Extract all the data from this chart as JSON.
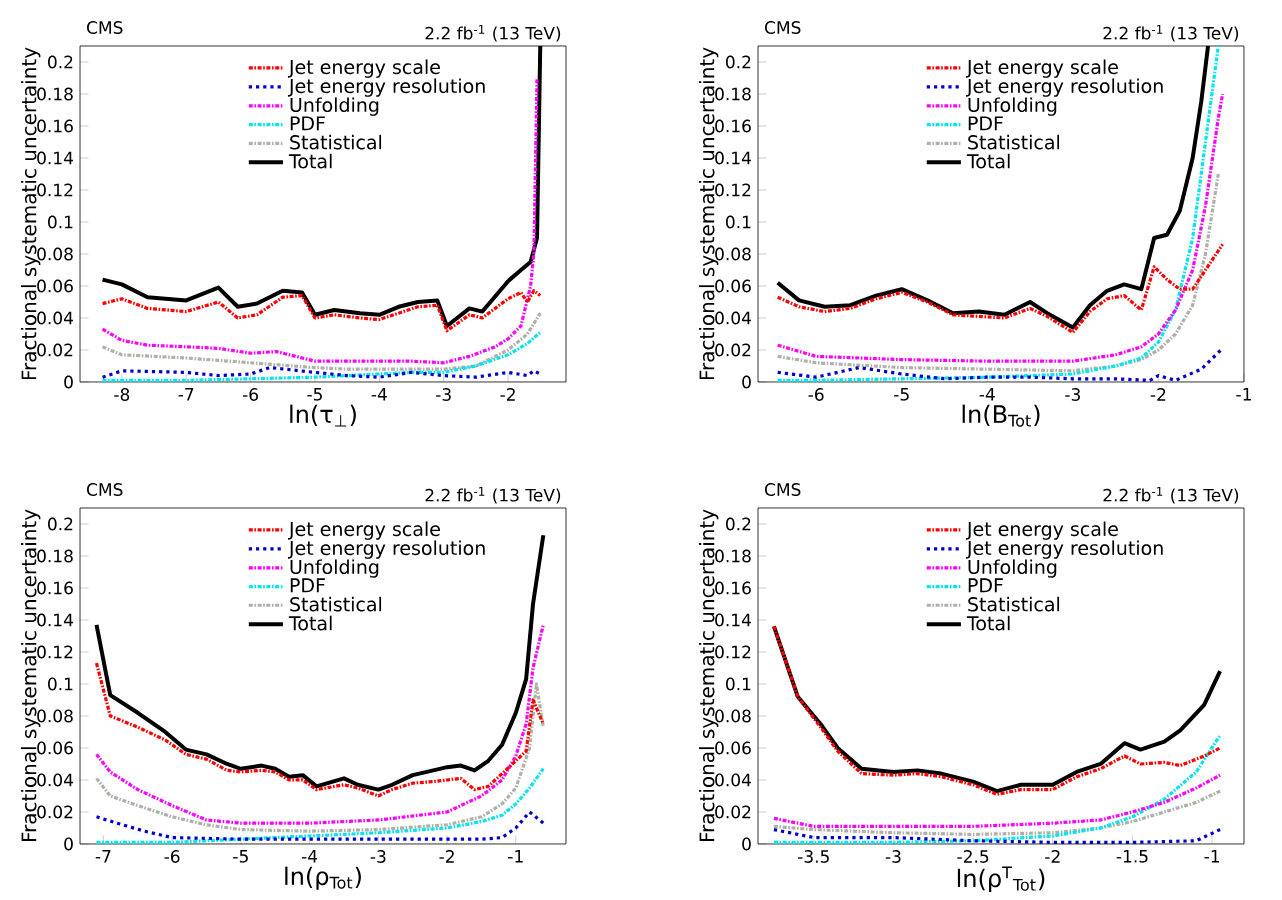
{
  "chart_data": [
    {
      "type": "line",
      "title": "CMS",
      "subtitle": "2.2 fb$^{-1}$ (13 TeV)",
      "xlabel": "ln(τ$_{⊥}$)",
      "ylabel": "Fractional systematic uncertainty",
      "xlim": [
        -8.65,
        -1.1
      ],
      "ylim": [
        0,
        0.21
      ],
      "xticks": [
        -8,
        -7,
        -6,
        -5,
        -4,
        -3,
        -2
      ],
      "yticks": [
        0,
        0.02,
        0.04,
        0.06,
        0.08,
        0.1,
        0.12,
        0.14,
        0.16,
        0.18,
        0.2
      ],
      "legend": "top",
      "series": [
        {
          "name": "Jet energy scale",
          "color": "#ff0000",
          "line_style": "dashed",
          "x": [
            -8.3,
            -8.0,
            -7.6,
            -7.0,
            -6.5,
            -6.2,
            -5.9,
            -5.5,
            -5.2,
            -5.0,
            -4.7,
            -4.3,
            -4.0,
            -3.7,
            -3.4,
            -3.1,
            -2.95,
            -2.6,
            -2.4,
            -2.0,
            -1.8,
            -1.7,
            -1.6,
            -1.5
          ],
          "values": [
            0.049,
            0.052,
            0.046,
            0.044,
            0.05,
            0.04,
            0.042,
            0.053,
            0.054,
            0.04,
            0.042,
            0.04,
            0.039,
            0.043,
            0.047,
            0.048,
            0.032,
            0.042,
            0.04,
            0.052,
            0.056,
            0.05,
            0.057,
            0.054
          ]
        },
        {
          "name": "Jet energy resolution",
          "color": "#0000cc",
          "line_style": "dotted",
          "x": [
            -8.3,
            -8.0,
            -7.0,
            -6.5,
            -6.0,
            -5.7,
            -5.0,
            -4.5,
            -4.0,
            -3.5,
            -3.0,
            -2.5,
            -2.0,
            -1.7,
            -1.6,
            -1.5
          ],
          "values": [
            0.003,
            0.007,
            0.006,
            0.004,
            0.005,
            0.009,
            0.006,
            0.004,
            0.003,
            0.006,
            0.004,
            0.003,
            0.006,
            0.004,
            0.007,
            0.005
          ]
        },
        {
          "name": "Unfolding",
          "color": "#ff00ff",
          "line_style": "dashed",
          "x": [
            -8.3,
            -8.0,
            -7.6,
            -7.0,
            -6.5,
            -6.0,
            -5.6,
            -5.0,
            -4.5,
            -4.0,
            -3.5,
            -3.0,
            -2.6,
            -2.2,
            -2.0,
            -1.8,
            -1.65,
            -1.6,
            -1.55
          ],
          "values": [
            0.033,
            0.026,
            0.023,
            0.022,
            0.021,
            0.018,
            0.019,
            0.013,
            0.013,
            0.013,
            0.013,
            0.012,
            0.016,
            0.022,
            0.027,
            0.035,
            0.06,
            0.08,
            0.19
          ]
        },
        {
          "name": "PDF",
          "color": "#00e5ee",
          "line_style": "dashed",
          "x": [
            -8.3,
            -7.0,
            -6.0,
            -5.0,
            -4.0,
            -3.5,
            -3.0,
            -2.5,
            -2.0,
            -1.7,
            -1.5
          ],
          "values": [
            0.001,
            0.001,
            0.002,
            0.003,
            0.005,
            0.006,
            0.006,
            0.01,
            0.017,
            0.024,
            0.031
          ]
        },
        {
          "name": "Statistical",
          "color": "#b0b0a8",
          "line_style": "dashed",
          "x": [
            -8.3,
            -8.0,
            -7.0,
            -6.0,
            -5.0,
            -4.5,
            -4.0,
            -3.5,
            -3.0,
            -2.5,
            -2.0,
            -1.7,
            -1.5
          ],
          "values": [
            0.022,
            0.017,
            0.015,
            0.012,
            0.009,
            0.008,
            0.008,
            0.008,
            0.008,
            0.01,
            0.02,
            0.03,
            0.043
          ]
        },
        {
          "name": "Total",
          "color": "#000000",
          "line_style": "solid",
          "x": [
            -8.3,
            -8.0,
            -7.6,
            -7.0,
            -6.5,
            -6.2,
            -5.9,
            -5.5,
            -5.2,
            -5.0,
            -4.7,
            -4.3,
            -4.0,
            -3.7,
            -3.4,
            -3.1,
            -2.95,
            -2.6,
            -2.4,
            -2.0,
            -1.8,
            -1.65,
            -1.55,
            -1.5
          ],
          "values": [
            0.064,
            0.061,
            0.053,
            0.051,
            0.059,
            0.047,
            0.049,
            0.057,
            0.056,
            0.042,
            0.045,
            0.043,
            0.042,
            0.047,
            0.05,
            0.051,
            0.035,
            0.046,
            0.044,
            0.063,
            0.07,
            0.075,
            0.09,
            0.21
          ]
        }
      ]
    },
    {
      "type": "line",
      "title": "CMS",
      "subtitle": "2.2 fb$^{-1}$ (13 TeV)",
      "xlabel": "ln(B$_{Tot}$)",
      "ylabel": "Fractional systematic uncertainty",
      "xlim": [
        -6.68,
        -1.0
      ],
      "ylim": [
        0,
        0.21
      ],
      "xticks": [
        -6,
        -5,
        -4,
        -3,
        -2,
        -1
      ],
      "yticks": [
        0,
        0.02,
        0.04,
        0.06,
        0.08,
        0.1,
        0.12,
        0.14,
        0.16,
        0.18,
        0.2
      ],
      "legend": "top",
      "series": [
        {
          "name": "Jet energy scale",
          "color": "#ff0000",
          "line_style": "dashed",
          "x": [
            -6.45,
            -6.2,
            -5.9,
            -5.6,
            -5.3,
            -5.0,
            -4.7,
            -4.4,
            -4.1,
            -3.8,
            -3.5,
            -3.3,
            -3.0,
            -2.8,
            -2.6,
            -2.4,
            -2.2,
            -2.05,
            -1.9,
            -1.75,
            -1.6,
            -1.45,
            -1.25
          ],
          "values": [
            0.053,
            0.047,
            0.044,
            0.046,
            0.052,
            0.056,
            0.05,
            0.042,
            0.041,
            0.04,
            0.046,
            0.041,
            0.031,
            0.044,
            0.052,
            0.054,
            0.045,
            0.072,
            0.064,
            0.058,
            0.058,
            0.07,
            0.086
          ]
        },
        {
          "name": "Jet energy resolution",
          "color": "#0000cc",
          "line_style": "dotted",
          "x": [
            -6.45,
            -6.0,
            -5.5,
            -5.0,
            -4.5,
            -4.0,
            -3.5,
            -3.0,
            -2.5,
            -2.1,
            -2.0,
            -1.8,
            -1.5,
            -1.25
          ],
          "values": [
            0.006,
            0.003,
            0.009,
            0.005,
            0.002,
            0.003,
            0.003,
            0.002,
            0.002,
            0.001,
            0.004,
            0.001,
            0.008,
            0.021
          ]
        },
        {
          "name": "Unfolding",
          "color": "#ff00ff",
          "line_style": "dashed",
          "x": [
            -6.45,
            -6.0,
            -5.0,
            -4.0,
            -3.0,
            -2.5,
            -2.2,
            -2.0,
            -1.8,
            -1.6,
            -1.45,
            -1.3,
            -1.25
          ],
          "values": [
            0.023,
            0.016,
            0.014,
            0.013,
            0.013,
            0.017,
            0.022,
            0.03,
            0.045,
            0.07,
            0.11,
            0.165,
            0.18
          ]
        },
        {
          "name": "PDF",
          "color": "#00e5ee",
          "line_style": "dashed",
          "x": [
            -6.45,
            -6.0,
            -5.0,
            -4.0,
            -3.0,
            -2.5,
            -2.2,
            -2.0,
            -1.8,
            -1.6,
            -1.45,
            -1.3
          ],
          "values": [
            0.001,
            0.001,
            0.002,
            0.003,
            0.005,
            0.01,
            0.015,
            0.025,
            0.045,
            0.09,
            0.15,
            0.21
          ]
        },
        {
          "name": "Statistical",
          "color": "#b0b0a8",
          "line_style": "dashed",
          "x": [
            -6.45,
            -6.0,
            -5.0,
            -4.0,
            -3.0,
            -2.5,
            -2.2,
            -2.0,
            -1.8,
            -1.6,
            -1.45,
            -1.3
          ],
          "values": [
            0.016,
            0.012,
            0.009,
            0.008,
            0.007,
            0.01,
            0.014,
            0.02,
            0.03,
            0.048,
            0.08,
            0.13
          ]
        },
        {
          "name": "Total",
          "color": "#000000",
          "line_style": "solid",
          "x": [
            -6.45,
            -6.2,
            -5.9,
            -5.6,
            -5.3,
            -5.0,
            -4.7,
            -4.4,
            -4.1,
            -3.8,
            -3.5,
            -3.3,
            -3.0,
            -2.8,
            -2.6,
            -2.4,
            -2.2,
            -2.05,
            -1.9,
            -1.75,
            -1.6,
            -1.5,
            -1.42
          ],
          "values": [
            0.062,
            0.051,
            0.047,
            0.048,
            0.054,
            0.058,
            0.051,
            0.043,
            0.044,
            0.042,
            0.05,
            0.043,
            0.034,
            0.048,
            0.057,
            0.061,
            0.058,
            0.09,
            0.092,
            0.107,
            0.14,
            0.175,
            0.21
          ]
        }
      ]
    },
    {
      "type": "line",
      "title": "CMS",
      "subtitle": "2.2 fb$^{-1}$ (13 TeV)",
      "xlabel": "ln(ρ$_{Tot}$)",
      "ylabel": "Fractional systematic uncertainty",
      "xlim": [
        -7.34,
        -0.27
      ],
      "ylim": [
        0,
        0.21
      ],
      "xticks": [
        -7,
        -6,
        -5,
        -4,
        -3,
        -2,
        -1
      ],
      "yticks": [
        0,
        0.02,
        0.04,
        0.06,
        0.08,
        0.1,
        0.12,
        0.14,
        0.16,
        0.18,
        0.2
      ],
      "legend": "top",
      "series": [
        {
          "name": "Jet energy scale",
          "color": "#ff0000",
          "line_style": "dashed",
          "x": [
            -7.1,
            -6.9,
            -6.5,
            -6.1,
            -5.8,
            -5.5,
            -5.2,
            -5.0,
            -4.7,
            -4.5,
            -4.3,
            -4.1,
            -3.9,
            -3.5,
            -3.3,
            -3.0,
            -2.8,
            -2.5,
            -2.2,
            -2.0,
            -1.8,
            -1.6,
            -1.4,
            -1.2,
            -1.0,
            -0.85,
            -0.75,
            -0.6
          ],
          "values": [
            0.113,
            0.08,
            0.073,
            0.065,
            0.056,
            0.053,
            0.046,
            0.045,
            0.046,
            0.045,
            0.04,
            0.04,
            0.034,
            0.037,
            0.035,
            0.03,
            0.034,
            0.038,
            0.039,
            0.04,
            0.041,
            0.034,
            0.036,
            0.044,
            0.052,
            0.058,
            0.09,
            0.075
          ]
        },
        {
          "name": "Jet energy resolution",
          "color": "#0000cc",
          "line_style": "dotted",
          "x": [
            -7.1,
            -6.8,
            -6.4,
            -6.0,
            -5.0,
            -4.0,
            -3.0,
            -2.0,
            -1.5,
            -1.2,
            -1.0,
            -0.8,
            -0.6
          ],
          "values": [
            0.017,
            0.013,
            0.008,
            0.004,
            0.003,
            0.003,
            0.003,
            0.003,
            0.003,
            0.004,
            0.01,
            0.02,
            0.013
          ]
        },
        {
          "name": "Unfolding",
          "color": "#ff00ff",
          "line_style": "dashed",
          "x": [
            -7.1,
            -6.9,
            -6.5,
            -6.0,
            -5.5,
            -5.0,
            -4.0,
            -3.0,
            -2.0,
            -1.5,
            -1.2,
            -1.0,
            -0.85,
            -0.75,
            -0.6
          ],
          "values": [
            0.056,
            0.045,
            0.034,
            0.024,
            0.015,
            0.013,
            0.013,
            0.015,
            0.02,
            0.03,
            0.04,
            0.055,
            0.075,
            0.11,
            0.137
          ]
        },
        {
          "name": "PDF",
          "color": "#00e5ee",
          "line_style": "dashed",
          "x": [
            -7.1,
            -6.0,
            -5.0,
            -4.0,
            -3.0,
            -2.0,
            -1.5,
            -1.2,
            -1.0,
            -0.8,
            -0.6
          ],
          "values": [
            0.001,
            0.001,
            0.003,
            0.005,
            0.007,
            0.01,
            0.014,
            0.018,
            0.025,
            0.035,
            0.047
          ]
        },
        {
          "name": "Statistical",
          "color": "#b0b0a8",
          "line_style": "dashed",
          "x": [
            -7.1,
            -6.9,
            -6.5,
            -6.0,
            -5.5,
            -5.0,
            -4.0,
            -3.0,
            -2.0,
            -1.5,
            -1.2,
            -1.0,
            -0.8,
            -0.7,
            -0.6
          ],
          "values": [
            0.041,
            0.03,
            0.024,
            0.017,
            0.012,
            0.009,
            0.008,
            0.009,
            0.012,
            0.017,
            0.025,
            0.035,
            0.06,
            0.1,
            0.073
          ]
        },
        {
          "name": "Total",
          "color": "#000000",
          "line_style": "solid",
          "x": [
            -7.1,
            -6.9,
            -6.5,
            -6.1,
            -5.8,
            -5.5,
            -5.2,
            -5.0,
            -4.7,
            -4.5,
            -4.3,
            -4.1,
            -3.9,
            -3.5,
            -3.3,
            -3.0,
            -2.8,
            -2.5,
            -2.2,
            -2.0,
            -1.8,
            -1.6,
            -1.4,
            -1.2,
            -1.0,
            -0.85,
            -0.75,
            -0.6
          ],
          "values": [
            0.137,
            0.093,
            0.082,
            0.07,
            0.059,
            0.056,
            0.05,
            0.047,
            0.049,
            0.047,
            0.042,
            0.043,
            0.036,
            0.041,
            0.037,
            0.034,
            0.037,
            0.043,
            0.046,
            0.048,
            0.049,
            0.046,
            0.052,
            0.062,
            0.082,
            0.103,
            0.15,
            0.193
          ]
        }
      ]
    },
    {
      "type": "line",
      "title": "CMS",
      "subtitle": "2.2 fb$^{-1}$ (13 TeV)",
      "xlabel": "ln(ρ$^{T}$$_{Tot}$)",
      "ylabel": "Fractional systematic uncertainty",
      "xlim": [
        -3.85,
        -0.8
      ],
      "ylim": [
        0,
        0.21
      ],
      "xticks": [
        -3.5,
        -3,
        -2.5,
        -2,
        -1.5,
        -1
      ],
      "yticks": [
        0,
        0.02,
        0.04,
        0.06,
        0.08,
        0.1,
        0.12,
        0.14,
        0.16,
        0.18,
        0.2
      ],
      "legend": "top",
      "series": [
        {
          "name": "Jet energy scale",
          "color": "#ff0000",
          "line_style": "dashed",
          "x": [
            -3.75,
            -3.6,
            -3.45,
            -3.35,
            -3.2,
            -3.0,
            -2.85,
            -2.7,
            -2.5,
            -2.35,
            -2.2,
            -2.0,
            -1.85,
            -1.7,
            -1.55,
            -1.45,
            -1.3,
            -1.2,
            -1.05,
            -0.95
          ],
          "values": [
            0.136,
            0.092,
            0.072,
            0.058,
            0.044,
            0.043,
            0.044,
            0.042,
            0.037,
            0.031,
            0.034,
            0.034,
            0.042,
            0.047,
            0.055,
            0.05,
            0.051,
            0.049,
            0.055,
            0.06
          ]
        },
        {
          "name": "Jet energy resolution",
          "color": "#0000cc",
          "line_style": "dotted",
          "x": [
            -3.75,
            -3.5,
            -3.0,
            -2.5,
            -2.0,
            -1.5,
            -1.1,
            -0.95
          ],
          "values": [
            0.009,
            0.004,
            0.004,
            0.002,
            0.001,
            0.001,
            0.002,
            0.009
          ]
        },
        {
          "name": "Unfolding",
          "color": "#ff00ff",
          "line_style": "dashed",
          "x": [
            -3.75,
            -3.5,
            -3.0,
            -2.5,
            -2.0,
            -1.7,
            -1.5,
            -1.3,
            -1.1,
            -0.95
          ],
          "values": [
            0.016,
            0.011,
            0.011,
            0.011,
            0.013,
            0.015,
            0.02,
            0.026,
            0.035,
            0.043
          ]
        },
        {
          "name": "PDF",
          "color": "#00e5ee",
          "line_style": "dashed",
          "x": [
            -3.75,
            -3.0,
            -2.5,
            -2.0,
            -1.7,
            -1.5,
            -1.3,
            -1.1,
            -0.95
          ],
          "values": [
            0.001,
            0.001,
            0.002,
            0.005,
            0.01,
            0.017,
            0.028,
            0.045,
            0.068
          ]
        },
        {
          "name": "Statistical",
          "color": "#b0b0a8",
          "line_style": "dashed",
          "x": [
            -3.75,
            -3.5,
            -3.0,
            -2.5,
            -2.0,
            -1.7,
            -1.5,
            -1.3,
            -1.1,
            -0.95
          ],
          "values": [
            0.011,
            0.009,
            0.007,
            0.006,
            0.007,
            0.01,
            0.014,
            0.02,
            0.026,
            0.033
          ]
        },
        {
          "name": "Total",
          "color": "#000000",
          "line_style": "solid",
          "x": [
            -3.75,
            -3.6,
            -3.45,
            -3.35,
            -3.2,
            -3.0,
            -2.85,
            -2.7,
            -2.5,
            -2.35,
            -2.2,
            -2.0,
            -1.85,
            -1.7,
            -1.55,
            -1.45,
            -1.3,
            -1.2,
            -1.05,
            -0.95
          ],
          "values": [
            0.136,
            0.092,
            0.074,
            0.06,
            0.047,
            0.045,
            0.046,
            0.044,
            0.039,
            0.033,
            0.037,
            0.037,
            0.045,
            0.05,
            0.063,
            0.059,
            0.064,
            0.071,
            0.087,
            0.108
          ]
        }
      ]
    }
  ]
}
